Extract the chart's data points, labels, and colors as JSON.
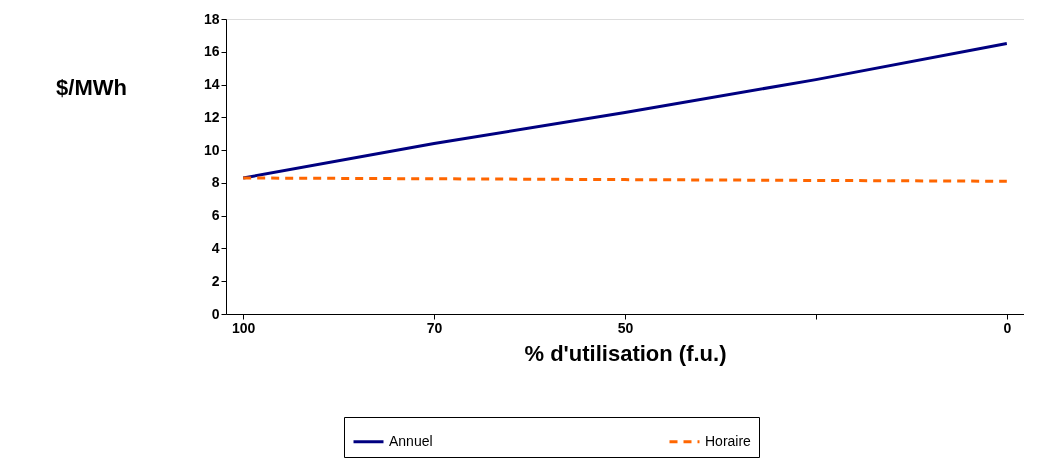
{
  "chart_data": {
    "type": "line",
    "xlabel": "% d'utilisation (f.u.)",
    "ylabel": "$/MWh",
    "categories": [
      "100",
      "70",
      "50",
      null,
      "0"
    ],
    "series": [
      {
        "name": "Annuel",
        "color": "#000080",
        "values": [
          8.3,
          10.4,
          12.3,
          14.3,
          16.5
        ],
        "line_style": "solid"
      },
      {
        "name": "Horaire",
        "color": "#ff6600",
        "values": [
          8.3,
          8.25,
          8.2,
          8.15,
          8.1
        ],
        "line_style": "dashed"
      }
    ],
    "ylim": [
      0,
      18
    ],
    "yticks": [
      0,
      2,
      4,
      6,
      8,
      10,
      12,
      14,
      16,
      18
    ],
    "grid": false,
    "legend": "bottom",
    "marker": "none"
  }
}
